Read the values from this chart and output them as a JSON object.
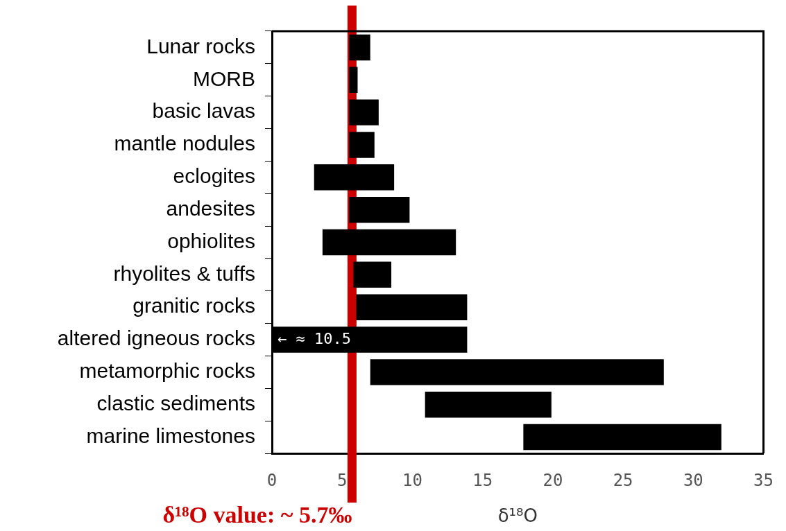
{
  "chart_data": {
    "type": "bar",
    "orientation": "horizontal",
    "xlabel": "δ¹⁸O",
    "categories": [
      "Lunar rocks",
      "MORB",
      "basic lavas",
      "mantle nodules",
      "eclogites",
      "andesites",
      "ophiolites",
      "rhyolites & tuffs",
      "granitic rocks",
      "altered igneous rocks",
      "metamorphic rocks",
      "clastic sediments",
      "marine limestones"
    ],
    "base": [
      5.5,
      5.5,
      5.5,
      5.5,
      3.0,
      5.5,
      3.6,
      5.8,
      6.0,
      0,
      7.0,
      10.9,
      17.9
    ],
    "values": [
      1.5,
      0.6,
      2.1,
      1.8,
      5.7,
      4.3,
      9.5,
      2.7,
      7.9,
      13.9,
      20.9,
      9.0,
      14.1
    ],
    "color": "#000000",
    "xlim": [
      0,
      35
    ],
    "xticks": [
      0,
      5,
      10,
      15,
      20,
      25,
      30,
      35
    ],
    "grid": false,
    "legend": false,
    "ref_lines": [
      {
        "axis": "x",
        "value": 5.7,
        "label": "δ¹⁸O value: ~ 5.7‰",
        "color": "#cc0000"
      }
    ],
    "annotations": [
      {
        "text": "← ≈ 10.5",
        "x": 0,
        "y": "altered igneous rocks"
      }
    ]
  }
}
